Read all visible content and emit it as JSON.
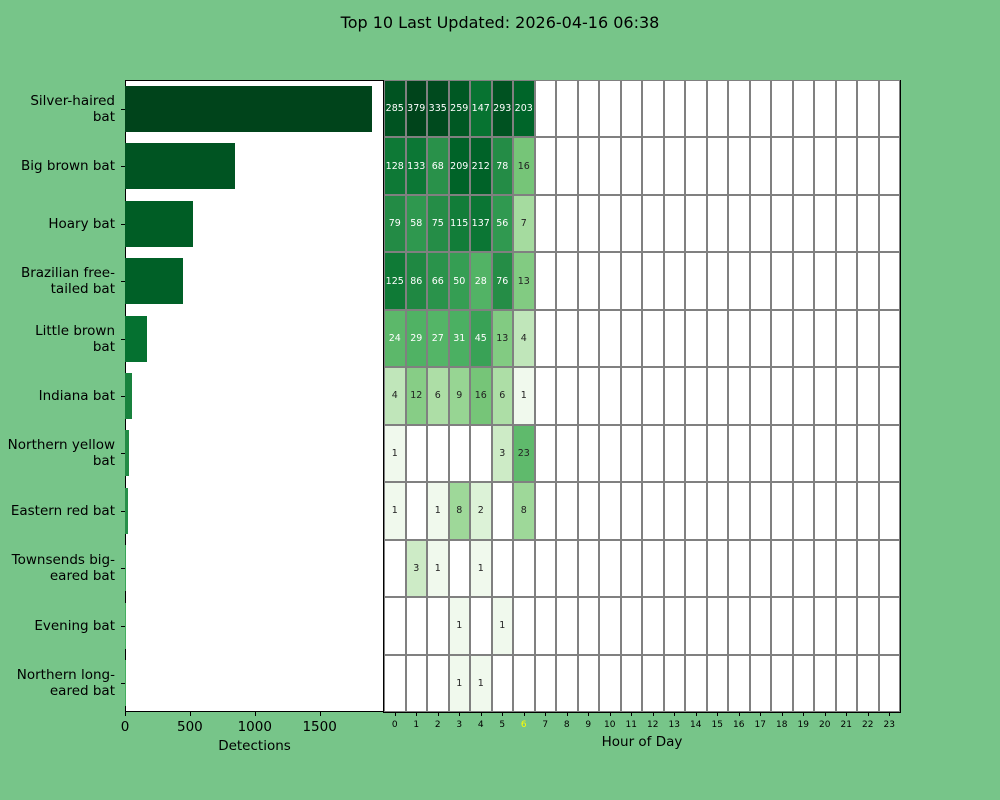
{
  "title": "Top 10 Last Updated: 2026-04-16 06:38",
  "chart_data": [
    {
      "type": "bar",
      "orientation": "horizontal",
      "xlabel": "Detections",
      "xlim": [
        0,
        1996
      ],
      "xticks": [
        "0",
        "500",
        "1000",
        "1500"
      ],
      "categories": [
        "Silver-haired bat",
        "Big brown bat",
        "Hoary bat",
        "Brazilian free-tailed bat",
        "Little brown bat",
        "Indiana bat",
        "Northern yellow bat",
        "Eastern red bat",
        "Townsends big-eared bat",
        "Evening bat",
        "Northern long-eared bat"
      ],
      "labels": [
        [
          "Silver-haired",
          "bat"
        ],
        [
          "Big brown bat"
        ],
        [
          "Hoary bat"
        ],
        [
          "Brazilian free-",
          "tailed bat"
        ],
        [
          "Little brown",
          "bat"
        ],
        [
          "Indiana bat"
        ],
        [
          "Northern yellow",
          "bat"
        ],
        [
          "Eastern red bat"
        ],
        [
          "Townsends big-",
          "eared bat"
        ],
        [
          "Evening bat"
        ],
        [
          "Northern long-",
          "eared bat"
        ]
      ],
      "values": [
        1901,
        844,
        527,
        444,
        173,
        54,
        27,
        20,
        5,
        2,
        2
      ]
    },
    {
      "type": "heatmap",
      "xlabel": "Hour of Day",
      "current_hour": 6,
      "current_hour_color": "#ffff00",
      "xticks": [
        "0",
        "1",
        "2",
        "3",
        "4",
        "5",
        "6",
        "7",
        "8",
        "9",
        "10",
        "11",
        "12",
        "13",
        "14",
        "15",
        "16",
        "17",
        "18",
        "19",
        "20",
        "21",
        "22",
        "23"
      ],
      "values": [
        [
          285,
          379,
          335,
          259,
          147,
          293,
          203
        ],
        [
          128,
          133,
          68,
          209,
          212,
          78,
          16
        ],
        [
          79,
          58,
          75,
          115,
          137,
          56,
          7
        ],
        [
          125,
          86,
          66,
          50,
          28,
          76,
          13
        ],
        [
          24,
          29,
          27,
          31,
          45,
          13,
          4
        ],
        [
          4,
          12,
          6,
          9,
          16,
          6,
          1
        ],
        [
          1,
          0,
          0,
          0,
          0,
          3,
          23
        ],
        [
          1,
          0,
          1,
          8,
          2,
          0,
          8
        ],
        [
          0,
          3,
          1,
          0,
          1,
          0,
          0
        ],
        [
          0,
          0,
          0,
          1,
          0,
          1,
          0
        ],
        [
          0,
          0,
          0,
          1,
          1,
          0,
          0
        ]
      ]
    }
  ]
}
